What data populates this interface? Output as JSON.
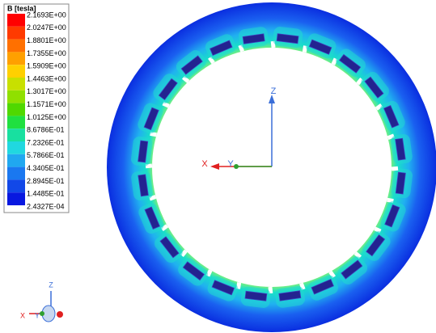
{
  "legend": {
    "title": "B [tesla]",
    "labels": [
      "2.1693E+00",
      "2.0247E+00",
      "1.8801E+00",
      "1.7355E+00",
      "1.5909E+00",
      "1.4463E+00",
      "1.3017E+00",
      "1.1571E+00",
      "1.0125E+00",
      "8.6786E-01",
      "7.2326E-01",
      "5.7866E-01",
      "4.3405E-01",
      "2.8945E-01",
      "1.4485E-01",
      "2.4327E-04"
    ]
  },
  "triad": {
    "z": "Z",
    "x": "X",
    "y": "Y"
  },
  "mini_triad": {
    "z": "Z",
    "x": "X",
    "y": "Y"
  }
}
